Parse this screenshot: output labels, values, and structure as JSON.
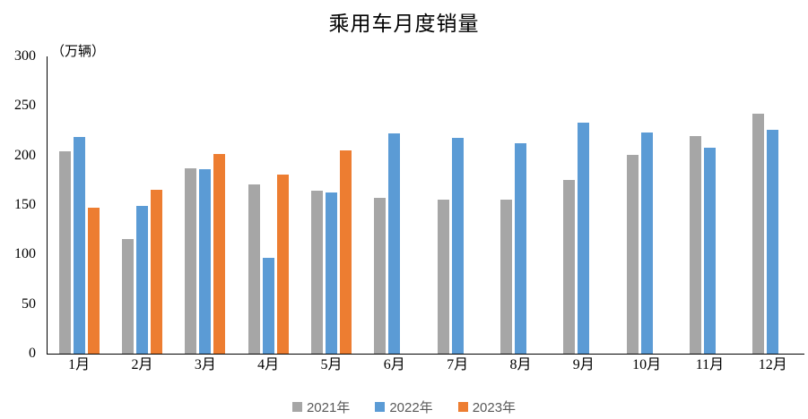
{
  "chart_data": {
    "type": "bar",
    "title": "乘用车月度销量",
    "unit_label": "（万辆）",
    "categories": [
      "1月",
      "2月",
      "3月",
      "4月",
      "5月",
      "6月",
      "7月",
      "8月",
      "9月",
      "10月",
      "11月",
      "12月"
    ],
    "series": [
      {
        "name": "2021年",
        "color": "#A6A6A6",
        "values": [
          204.5,
          115.6,
          187.4,
          170.4,
          164.6,
          156.9,
          155.1,
          155.2,
          175.1,
          200.4,
          219.2,
          242.2
        ]
      },
      {
        "name": "2022年",
        "color": "#5B9BD5",
        "values": [
          218.6,
          148.7,
          186.4,
          96.5,
          162.3,
          222.2,
          217.4,
          212.5,
          233.2,
          223.1,
          207.5,
          226.3
        ]
      },
      {
        "name": "2023年",
        "color": "#ED7D31",
        "values": [
          146.9,
          165.3,
          201.7,
          181.1,
          205.1,
          null,
          null,
          null,
          null,
          null,
          null,
          null
        ]
      }
    ],
    "ylabel": "（万辆）",
    "xlabel": "",
    "ylim": [
      0,
      300
    ],
    "yticks": [
      0,
      50,
      100,
      150,
      200,
      250,
      300
    ],
    "grid": false,
    "legend_position": "bottom",
    "axis_color": "#000000",
    "legend_text_color": "#595959",
    "background_color": "#FFFFFF"
  }
}
